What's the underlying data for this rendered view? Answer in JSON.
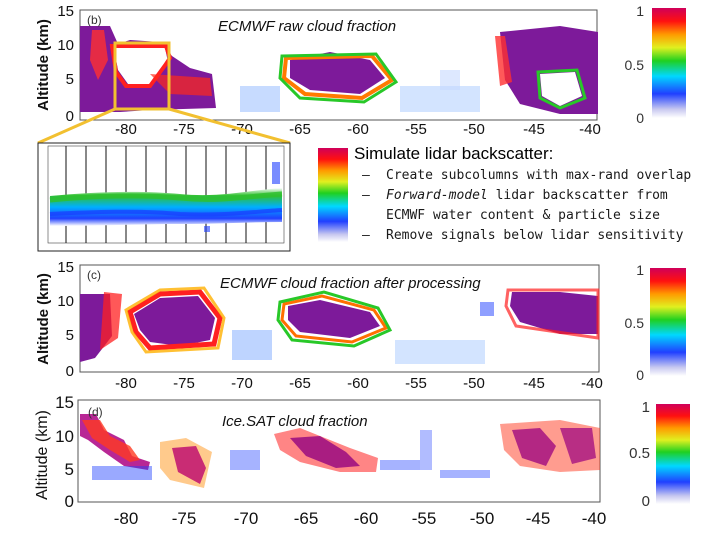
{
  "panels": [
    {
      "id": "b",
      "letter": "(b)",
      "title": "ECMWF raw cloud fraction",
      "ylabel": "Altitude (km)",
      "yticks": [
        "15",
        "10",
        "5",
        "0"
      ],
      "xticks": [
        "-80",
        "-75",
        "-70",
        "-65",
        "-60",
        "-55",
        "-50",
        "-45",
        "-40"
      ]
    },
    {
      "id": "c",
      "letter": "(c)",
      "title": "ECMWF cloud fraction after processing",
      "ylabel": "Altitude (km)",
      "yticks": [
        "15",
        "10",
        "5",
        "0"
      ],
      "xticks": [
        "-80",
        "-75",
        "-70",
        "-65",
        "-60",
        "-55",
        "-50",
        "-45",
        "-40"
      ]
    },
    {
      "id": "d",
      "letter": "(d)",
      "title": "Ice.SAT cloud fraction",
      "ylabel": "Altitude (km)",
      "yticks": [
        "15",
        "10",
        "5",
        "0"
      ],
      "xticks": [
        "-80",
        "-75",
        "-70",
        "-65",
        "-60",
        "-55",
        "-50",
        "-45",
        "-40"
      ]
    }
  ],
  "colorbar": {
    "ticks": [
      "1",
      "0.5",
      "0"
    ]
  },
  "lidar": {
    "heading": "Simulate lidar backscatter:",
    "bullets": [
      {
        "dash": "–",
        "text": "Create subcolumns with max-rand overlap"
      },
      {
        "dash": "–",
        "em": "Forward-model",
        "text": " lidar backscatter from ECMWF water content & particle size"
      },
      {
        "dash": "–",
        "text": "Remove signals below lidar sensitivity"
      }
    ]
  },
  "colors": {
    "zoom_box": "#f2c030",
    "cloud_high": "#7d1a9a"
  }
}
